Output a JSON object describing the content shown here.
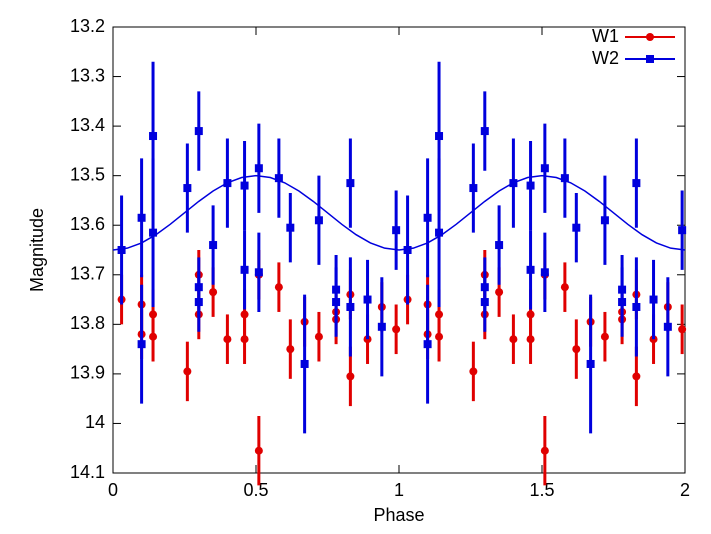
{
  "chart_data": {
    "type": "errorbar-scatter",
    "x_label": "Phase",
    "y_label": "Magnitude",
    "xlim": [
      0,
      2
    ],
    "xticks": [
      0,
      0.5,
      1,
      1.5,
      2
    ],
    "ylim": [
      13.2,
      14.1
    ],
    "yticks": [
      13.2,
      13.3,
      13.4,
      13.5,
      13.6,
      13.7,
      13.8,
      13.9,
      14,
      14.1
    ],
    "y_inverted": true,
    "legend": "upper right",
    "series": [
      {
        "name": "W1",
        "color": "#e00000",
        "marker": "circle",
        "x": [
          0.03,
          0.1,
          0.1,
          0.14,
          0.14,
          0.26,
          0.3,
          0.3,
          0.35,
          0.4,
          0.46,
          0.46,
          0.51,
          0.51,
          0.58,
          0.62,
          0.67,
          0.72,
          0.78,
          0.78,
          0.83,
          0.83,
          0.89,
          0.94,
          0.99,
          1.03,
          1.1,
          1.1,
          1.14,
          1.14,
          1.26,
          1.3,
          1.3,
          1.35,
          1.4,
          1.46,
          1.46,
          1.51,
          1.51,
          1.58,
          1.62,
          1.67,
          1.72,
          1.78,
          1.78,
          1.83,
          1.83,
          1.89,
          1.94,
          1.99
        ],
        "values": [
          13.75,
          13.82,
          13.76,
          13.78,
          13.825,
          13.895,
          13.7,
          13.78,
          13.735,
          13.83,
          13.78,
          13.83,
          13.7,
          14.055,
          13.725,
          13.85,
          13.795,
          13.825,
          13.775,
          13.79,
          13.74,
          13.905,
          13.83,
          13.765,
          13.81,
          13.75,
          13.82,
          13.76,
          13.78,
          13.825,
          13.895,
          13.7,
          13.78,
          13.735,
          13.83,
          13.78,
          13.83,
          13.7,
          14.055,
          13.725,
          13.85,
          13.795,
          13.825,
          13.775,
          13.79,
          13.74,
          13.905,
          13.83,
          13.765,
          13.81
        ],
        "errors": [
          0.05,
          0.05,
          0.06,
          0.05,
          0.05,
          0.06,
          0.05,
          0.05,
          0.05,
          0.05,
          0.05,
          0.05,
          0.05,
          0.07,
          0.05,
          0.06,
          0.05,
          0.05,
          0.05,
          0.05,
          0.05,
          0.06,
          0.05,
          0.05,
          0.05,
          0.05,
          0.05,
          0.06,
          0.05,
          0.05,
          0.06,
          0.05,
          0.05,
          0.05,
          0.05,
          0.05,
          0.05,
          0.05,
          0.07,
          0.05,
          0.06,
          0.05,
          0.05,
          0.05,
          0.05,
          0.05,
          0.06,
          0.05,
          0.05,
          0.05
        ]
      },
      {
        "name": "W2",
        "color": "#0000dd",
        "marker": "square",
        "x": [
          0.03,
          0.1,
          0.1,
          0.14,
          0.14,
          0.26,
          0.3,
          0.3,
          0.3,
          0.35,
          0.4,
          0.46,
          0.46,
          0.51,
          0.51,
          0.58,
          0.62,
          0.67,
          0.72,
          0.78,
          0.78,
          0.83,
          0.83,
          0.89,
          0.94,
          0.99,
          1.03,
          1.1,
          1.1,
          1.14,
          1.14,
          1.26,
          1.3,
          1.3,
          1.3,
          1.35,
          1.4,
          1.46,
          1.46,
          1.51,
          1.51,
          1.58,
          1.62,
          1.67,
          1.72,
          1.78,
          1.78,
          1.83,
          1.83,
          1.89,
          1.94,
          1.99
        ],
        "values": [
          13.65,
          13.585,
          13.84,
          13.42,
          13.615,
          13.525,
          13.41,
          13.725,
          13.755,
          13.64,
          13.515,
          13.52,
          13.69,
          13.485,
          13.695,
          13.505,
          13.605,
          13.88,
          13.59,
          13.73,
          13.755,
          13.515,
          13.765,
          13.75,
          13.805,
          13.61,
          13.65,
          13.585,
          13.84,
          13.42,
          13.615,
          13.525,
          13.41,
          13.725,
          13.755,
          13.64,
          13.515,
          13.52,
          13.69,
          13.485,
          13.695,
          13.505,
          13.605,
          13.88,
          13.59,
          13.73,
          13.755,
          13.515,
          13.765,
          13.75,
          13.805,
          13.61
        ],
        "errors": [
          0.11,
          0.12,
          0.12,
          0.15,
          0.15,
          0.09,
          0.08,
          0.06,
          0.06,
          0.08,
          0.09,
          0.09,
          0.08,
          0.09,
          0.08,
          0.08,
          0.07,
          0.14,
          0.09,
          0.07,
          0.07,
          0.09,
          0.1,
          0.08,
          0.1,
          0.08,
          0.11,
          0.12,
          0.12,
          0.15,
          0.15,
          0.09,
          0.08,
          0.06,
          0.06,
          0.08,
          0.09,
          0.09,
          0.08,
          0.09,
          0.08,
          0.08,
          0.07,
          0.14,
          0.09,
          0.07,
          0.07,
          0.09,
          0.1,
          0.08,
          0.1,
          0.08
        ]
      }
    ],
    "model": {
      "color": "#0000dd",
      "x": [
        0,
        0.05,
        0.1,
        0.15,
        0.2,
        0.25,
        0.3,
        0.35,
        0.4,
        0.45,
        0.5,
        0.55,
        0.6,
        0.65,
        0.7,
        0.75,
        0.8,
        0.85,
        0.9,
        0.95,
        1,
        1.05,
        1.1,
        1.15,
        1.2,
        1.25,
        1.3,
        1.35,
        1.4,
        1.45,
        1.5,
        1.55,
        1.6,
        1.65,
        1.7,
        1.75,
        1.8,
        1.85,
        1.9,
        1.95,
        2
      ],
      "values": [
        13.65,
        13.6463,
        13.6357,
        13.6191,
        13.5982,
        13.575,
        13.5518,
        13.5309,
        13.5143,
        13.5037,
        13.5,
        13.5037,
        13.5143,
        13.5309,
        13.5518,
        13.575,
        13.5982,
        13.6191,
        13.6357,
        13.6463,
        13.65,
        13.6463,
        13.6357,
        13.6191,
        13.5982,
        13.575,
        13.5518,
        13.5309,
        13.5143,
        13.5037,
        13.5,
        13.5037,
        13.5143,
        13.5309,
        13.5518,
        13.575,
        13.5982,
        13.6191,
        13.6357,
        13.6463,
        13.65
      ]
    }
  }
}
